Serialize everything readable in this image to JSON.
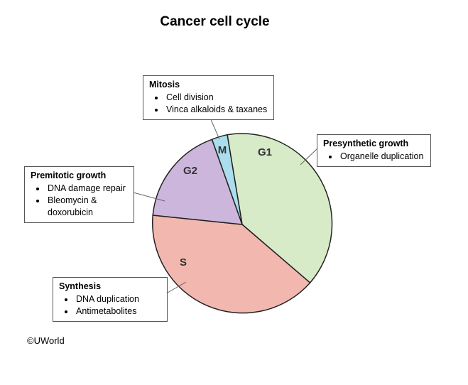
{
  "title": "Cancer cell cycle",
  "credit": "©UWorld",
  "phases": [
    {
      "key": "g1",
      "label": "G1",
      "color": "#d8ebc8"
    },
    {
      "key": "s",
      "label": "S",
      "color": "#f2b8b0"
    },
    {
      "key": "g2",
      "label": "G2",
      "color": "#ccb6dc"
    },
    {
      "key": "m",
      "label": "M",
      "color": "#aadeec"
    }
  ],
  "callouts": {
    "mitosis": {
      "heading": "Mitosis",
      "items": [
        "Cell division",
        "Vinca alkaloids & taxanes"
      ]
    },
    "presynthetic": {
      "heading": "Presynthetic growth",
      "items": [
        "Organelle duplication"
      ]
    },
    "premitotic": {
      "heading": "Premitotic growth",
      "items": [
        "DNA damage repair",
        "Bleomycin & doxorubicin"
      ]
    },
    "synthesis": {
      "heading": "Synthesis",
      "items": [
        "DNA duplication",
        "Antimetabolites"
      ]
    }
  }
}
